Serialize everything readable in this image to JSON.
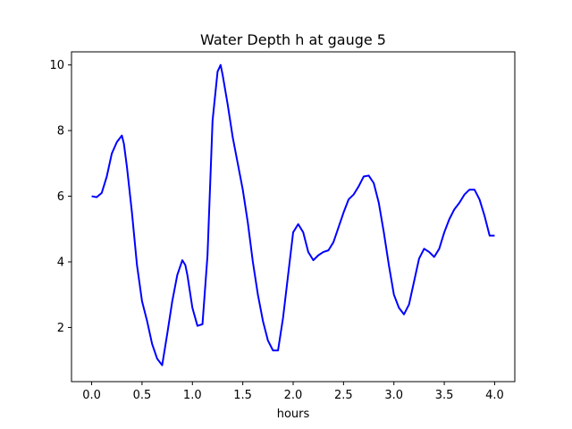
{
  "chart_data": {
    "type": "line",
    "title": "Water Depth h at gauge 5",
    "xlabel": "hours",
    "ylabel": "",
    "xlim": [
      -0.2,
      4.2
    ],
    "ylim": [
      0.35,
      10.4
    ],
    "xticks": [
      0.0,
      0.5,
      1.0,
      1.5,
      2.0,
      2.5,
      3.0,
      3.5,
      4.0
    ],
    "xtick_labels": [
      "0.0",
      "0.5",
      "1.0",
      "1.5",
      "2.0",
      "2.5",
      "3.0",
      "3.5",
      "4.0"
    ],
    "yticks": [
      2,
      4,
      6,
      8,
      10
    ],
    "ytick_labels": [
      "2",
      "4",
      "6",
      "8",
      "10"
    ],
    "grid": false,
    "series": [
      {
        "color": "#0000ff",
        "x": [
          0.0,
          0.05,
          0.1,
          0.15,
          0.2,
          0.25,
          0.3,
          0.32,
          0.35,
          0.4,
          0.45,
          0.5,
          0.55,
          0.6,
          0.65,
          0.7,
          0.75,
          0.8,
          0.85,
          0.9,
          0.93,
          0.95,
          1.0,
          1.05,
          1.1,
          1.15,
          1.2,
          1.25,
          1.28,
          1.3,
          1.35,
          1.4,
          1.45,
          1.5,
          1.55,
          1.6,
          1.65,
          1.7,
          1.75,
          1.8,
          1.85,
          1.9,
          1.95,
          2.0,
          2.05,
          2.1,
          2.15,
          2.2,
          2.25,
          2.3,
          2.35,
          2.4,
          2.45,
          2.5,
          2.55,
          2.6,
          2.65,
          2.7,
          2.75,
          2.8,
          2.85,
          2.9,
          2.95,
          3.0,
          3.05,
          3.1,
          3.15,
          3.2,
          3.25,
          3.3,
          3.35,
          3.4,
          3.45,
          3.5,
          3.55,
          3.6,
          3.65,
          3.7,
          3.75,
          3.8,
          3.85,
          3.9,
          3.95,
          4.0
        ],
        "y": [
          6.0,
          5.97,
          6.1,
          6.6,
          7.3,
          7.65,
          7.85,
          7.6,
          6.9,
          5.5,
          3.9,
          2.8,
          2.2,
          1.5,
          1.05,
          0.85,
          1.8,
          2.8,
          3.6,
          4.05,
          3.9,
          3.6,
          2.6,
          2.05,
          2.1,
          4.2,
          8.3,
          9.8,
          10.0,
          9.7,
          8.8,
          7.8,
          7.0,
          6.2,
          5.2,
          4.0,
          3.0,
          2.2,
          1.6,
          1.3,
          1.3,
          2.3,
          3.6,
          4.9,
          5.15,
          4.9,
          4.3,
          4.05,
          4.2,
          4.3,
          4.35,
          4.6,
          5.05,
          5.5,
          5.9,
          6.05,
          6.3,
          6.6,
          6.63,
          6.4,
          5.8,
          4.9,
          3.9,
          3.0,
          2.6,
          2.4,
          2.7,
          3.4,
          4.1,
          4.4,
          4.3,
          4.15,
          4.4,
          4.9,
          5.3,
          5.6,
          5.8,
          6.05,
          6.2,
          6.2,
          5.9,
          5.4,
          4.8,
          4.8
        ]
      }
    ]
  }
}
